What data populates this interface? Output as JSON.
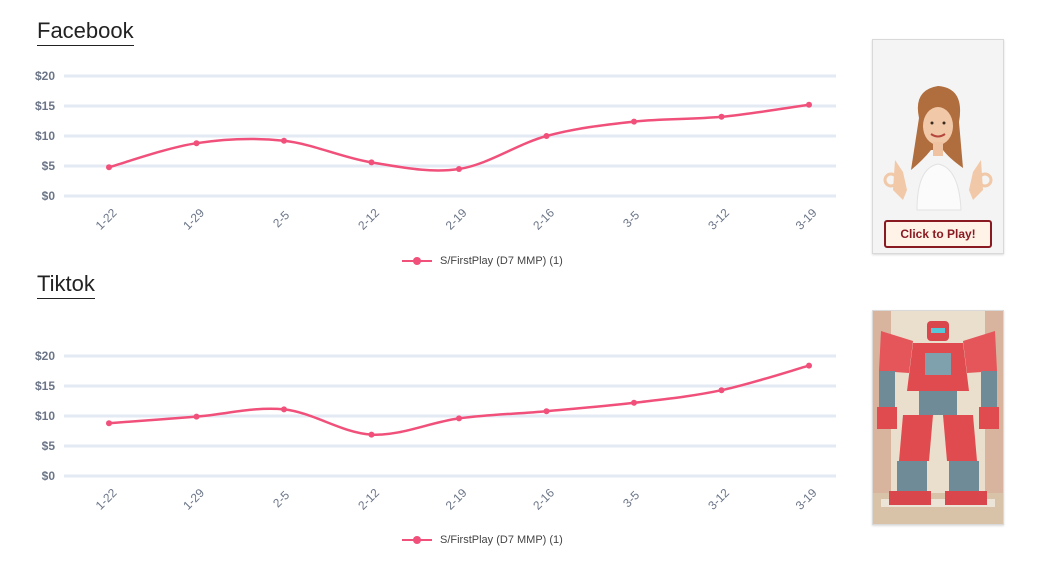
{
  "sections": {
    "facebook": {
      "title": "Facebook"
    },
    "tiktok": {
      "title": "Tiktok"
    }
  },
  "facebook_ad": {
    "cta_label": "Click to Play!"
  },
  "colors": {
    "series": "#f0507a",
    "grid": "#e3eaf3",
    "tick": "#6b7587"
  },
  "chart_data": [
    {
      "type": "line",
      "title": "Facebook",
      "categories": [
        "1-22",
        "1-29",
        "2-5",
        "2-12",
        "2-19",
        "2-16",
        "3-5",
        "3-12",
        "3-19"
      ],
      "y_ticks": [
        "$0",
        "$5",
        "$10",
        "$15",
        "$20"
      ],
      "ylim": [
        0,
        20
      ],
      "smooth": true,
      "legend_position": "bottom",
      "series": [
        {
          "name": "S/FirstPlay (D7 MMP) (1)",
          "values": [
            4.8,
            8.8,
            9.2,
            5.6,
            4.5,
            10.0,
            12.4,
            13.2,
            15.2
          ]
        }
      ]
    },
    {
      "type": "line",
      "title": "Tiktok",
      "categories": [
        "1-22",
        "1-29",
        "2-5",
        "2-12",
        "2-19",
        "2-16",
        "3-5",
        "3-12",
        "3-19"
      ],
      "y_ticks": [
        "$0",
        "$5",
        "$10",
        "$15",
        "$20"
      ],
      "ylim": [
        0,
        20
      ],
      "smooth": true,
      "legend_position": "bottom",
      "series": [
        {
          "name": "S/FirstPlay (D7 MMP) (1)",
          "values": [
            8.8,
            9.9,
            11.1,
            6.9,
            9.6,
            10.8,
            12.2,
            14.3,
            18.4
          ]
        }
      ]
    }
  ]
}
